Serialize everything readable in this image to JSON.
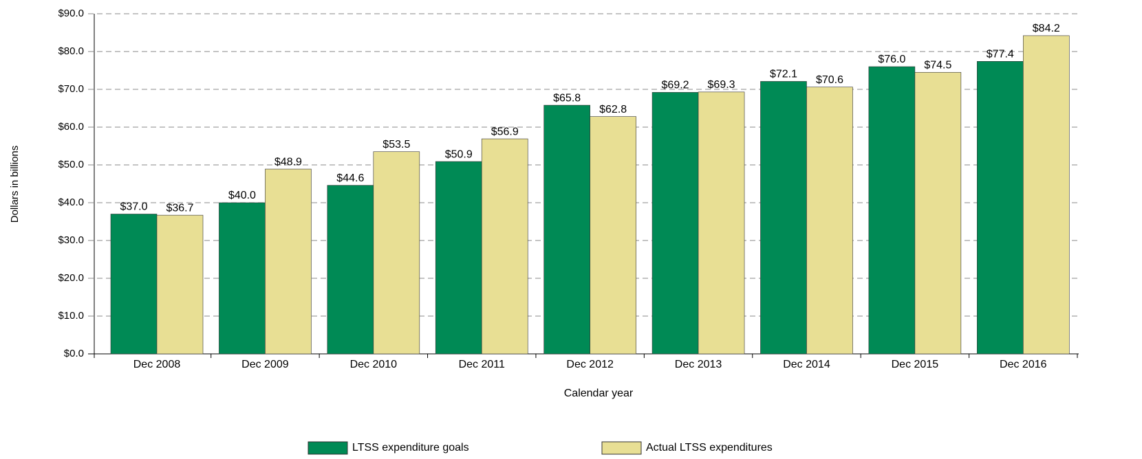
{
  "chart_data": {
    "type": "bar",
    "y_label": "Dollars in billions",
    "x_label": "Calendar year",
    "categories": [
      "Dec 2008",
      "Dec 2009",
      "Dec 2010",
      "Dec 2011",
      "Dec 2012",
      "Dec 2013",
      "Dec 2014",
      "Dec 2015",
      "Dec 2016"
    ],
    "series": [
      {
        "name": "LTSS expenditure goals",
        "color": "#008a55",
        "values": [
          37.0,
          40.0,
          44.6,
          50.9,
          65.8,
          69.2,
          72.1,
          76.0,
          77.4
        ],
        "value_labels": [
          "$37.0",
          "$40.0",
          "$44.6",
          "$50.9",
          "$65.8",
          "$69.2",
          "$72.1",
          "$76.0",
          "$77.4"
        ]
      },
      {
        "name": "Actual LTSS expenditures",
        "color": "#e8df94",
        "values": [
          36.7,
          48.9,
          53.5,
          56.9,
          62.8,
          69.3,
          70.6,
          74.5,
          84.2
        ],
        "value_labels": [
          "$36.7",
          "$48.9",
          "$53.5",
          "$56.9",
          "$62.8",
          "$69.3",
          "$70.6",
          "$74.5",
          "$84.2"
        ]
      }
    ],
    "ylim": [
      0,
      90
    ],
    "yticks": [
      {
        "value": 0,
        "label": "$0.0"
      },
      {
        "value": 10,
        "label": "$10.0"
      },
      {
        "value": 20,
        "label": "$20.0"
      },
      {
        "value": 30,
        "label": "$30.0"
      },
      {
        "value": 40,
        "label": "$40.0"
      },
      {
        "value": 50,
        "label": "$50.0"
      },
      {
        "value": 60,
        "label": "$60.0"
      },
      {
        "value": 70,
        "label": "$70.0"
      },
      {
        "value": 80,
        "label": "$80.0"
      },
      {
        "value": 90,
        "label": "$90.0"
      }
    ],
    "grid": true,
    "legend": "bottom"
  }
}
